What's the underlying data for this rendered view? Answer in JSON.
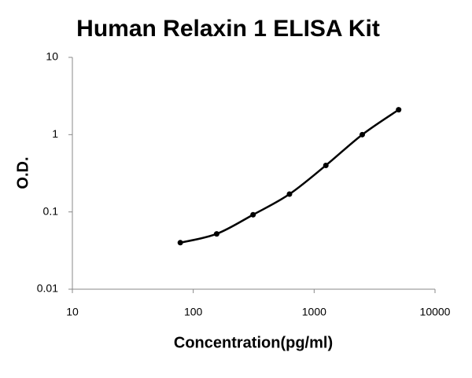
{
  "chart_data": {
    "type": "scatter",
    "title": "Human Relaxin 1 ELISA Kit",
    "x_label": "Concentration(pg/ml)",
    "y_label": "O.D.",
    "series": [
      {
        "name": "O.D.",
        "color": "#000000",
        "x": [
          78.125,
          156.25,
          312.5,
          625,
          1250,
          2500,
          5000
        ],
        "values": [
          0.04,
          0.052,
          0.092,
          0.17,
          0.4,
          1.0,
          2.1
        ]
      }
    ],
    "xlim": [
      10,
      10000
    ],
    "xticks": [
      10,
      100,
      1000,
      10000
    ],
    "ylim": [
      0.01,
      10
    ],
    "yticks": [
      0.01,
      0.1,
      1,
      10
    ],
    "xscale": "log",
    "yscale": "log",
    "grid": false,
    "smooth_line": true
  }
}
